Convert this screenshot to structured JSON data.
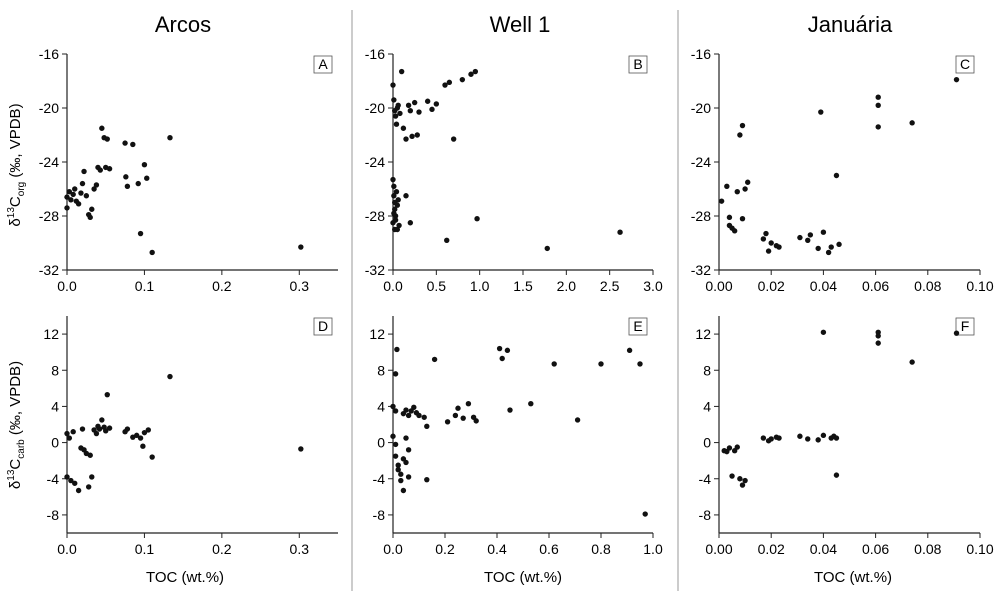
{
  "columns": [
    {
      "title": "Arcos"
    },
    {
      "title": "Well 1"
    },
    {
      "title": "Januária"
    }
  ],
  "ylabels": {
    "org": {
      "prefix": "δ",
      "sup": "13",
      "main": "C",
      "sub": "org",
      "suffix": " (‰, VPDB)"
    },
    "carb": {
      "prefix": "δ",
      "sup": "13",
      "main": "C",
      "sub": "carb",
      "suffix": " (‰, VPDB)"
    }
  },
  "xlabel": "TOC (wt.%)",
  "colors": {
    "points": "#111111",
    "axis": "#222222",
    "separator": "#999999"
  },
  "chart_data": [
    {
      "panel": "A",
      "type": "scatter",
      "column": "Arcos",
      "variable": "δ13Corg",
      "xlim": [
        0,
        0.35
      ],
      "ylim": [
        -32,
        -16
      ],
      "xticks": [
        "0.0",
        "0.1",
        "0.2",
        "0.3"
      ],
      "yticks": [
        "-16",
        "-20",
        "-24",
        "-28",
        "-32"
      ],
      "points": [
        [
          0.0,
          -27.4
        ],
        [
          0.0,
          -26.6
        ],
        [
          0.003,
          -26.2
        ],
        [
          0.005,
          -26.8
        ],
        [
          0.008,
          -26.4
        ],
        [
          0.01,
          -26.0
        ],
        [
          0.012,
          -26.9
        ],
        [
          0.015,
          -27.1
        ],
        [
          0.018,
          -26.3
        ],
        [
          0.02,
          -25.6
        ],
        [
          0.022,
          -24.7
        ],
        [
          0.025,
          -26.5
        ],
        [
          0.028,
          -27.9
        ],
        [
          0.03,
          -28.1
        ],
        [
          0.032,
          -27.5
        ],
        [
          0.035,
          -26.0
        ],
        [
          0.038,
          -25.7
        ],
        [
          0.04,
          -24.4
        ],
        [
          0.043,
          -24.6
        ],
        [
          0.045,
          -21.5
        ],
        [
          0.048,
          -22.2
        ],
        [
          0.05,
          -24.4
        ],
        [
          0.052,
          -22.3
        ],
        [
          0.055,
          -24.5
        ],
        [
          0.075,
          -22.6
        ],
        [
          0.076,
          -25.1
        ],
        [
          0.078,
          -25.8
        ],
        [
          0.085,
          -22.7
        ],
        [
          0.092,
          -25.6
        ],
        [
          0.095,
          -29.3
        ],
        [
          0.1,
          -24.2
        ],
        [
          0.103,
          -25.2
        ],
        [
          0.11,
          -30.7
        ],
        [
          0.133,
          -22.2
        ],
        [
          0.302,
          -30.3
        ]
      ]
    },
    {
      "panel": "B",
      "type": "scatter",
      "column": "Well 1",
      "variable": "δ13Corg",
      "xlim": [
        0,
        3.0
      ],
      "ylim": [
        -32,
        -16
      ],
      "xticks": [
        "0.0",
        "0.5",
        "1.0",
        "1.5",
        "2.0",
        "2.5",
        "3.0"
      ],
      "yticks": [
        "-16",
        "-20",
        "-24",
        "-28",
        "-32"
      ],
      "points": [
        [
          0.0,
          -18.3
        ],
        [
          0.01,
          -19.4
        ],
        [
          0.02,
          -20.2
        ],
        [
          0.03,
          -20.6
        ],
        [
          0.04,
          -21.2
        ],
        [
          0.05,
          -20.0
        ],
        [
          0.06,
          -19.8
        ],
        [
          0.08,
          -20.4
        ],
        [
          0.1,
          -17.3
        ],
        [
          0.12,
          -21.5
        ],
        [
          0.15,
          -22.3
        ],
        [
          0.18,
          -19.8
        ],
        [
          0.2,
          -20.2
        ],
        [
          0.22,
          -22.1
        ],
        [
          0.25,
          -19.6
        ],
        [
          0.28,
          -22.0
        ],
        [
          0.3,
          -20.3
        ],
        [
          0.4,
          -19.5
        ],
        [
          0.45,
          -20.1
        ],
        [
          0.5,
          -19.7
        ],
        [
          0.6,
          -18.3
        ],
        [
          0.65,
          -18.1
        ],
        [
          0.7,
          -22.3
        ],
        [
          0.8,
          -17.9
        ],
        [
          0.9,
          -17.5
        ],
        [
          0.95,
          -17.3
        ],
        [
          0.0,
          -25.3
        ],
        [
          0.01,
          -25.8
        ],
        [
          0.01,
          -26.5
        ],
        [
          0.02,
          -27.0
        ],
        [
          0.02,
          -27.5
        ],
        [
          0.03,
          -28.0
        ],
        [
          0.03,
          -28.3
        ],
        [
          0.04,
          -26.2
        ],
        [
          0.05,
          -27.2
        ],
        [
          0.06,
          -26.8
        ],
        [
          0.07,
          -28.7
        ],
        [
          0.0,
          -28.5
        ],
        [
          0.01,
          -27.8
        ],
        [
          0.02,
          -29.0
        ],
        [
          0.05,
          -29.0
        ],
        [
          0.15,
          -26.5
        ],
        [
          0.2,
          -28.5
        ],
        [
          0.62,
          -29.8
        ],
        [
          0.97,
          -28.2
        ],
        [
          1.78,
          -30.4
        ],
        [
          2.62,
          -29.2
        ]
      ]
    },
    {
      "panel": "C",
      "type": "scatter",
      "column": "Januária",
      "variable": "δ13Corg",
      "xlim": [
        0,
        0.1
      ],
      "ylim": [
        -32,
        -16
      ],
      "xticks": [
        "0.00",
        "0.02",
        "0.04",
        "0.06",
        "0.08",
        "0.10"
      ],
      "yticks": [
        "-16",
        "-20",
        "-24",
        "-28",
        "-32"
      ],
      "points": [
        [
          0.001,
          -26.9
        ],
        [
          0.003,
          -25.8
        ],
        [
          0.004,
          -28.1
        ],
        [
          0.004,
          -28.7
        ],
        [
          0.005,
          -28.9
        ],
        [
          0.006,
          -29.1
        ],
        [
          0.007,
          -26.2
        ],
        [
          0.008,
          -22.0
        ],
        [
          0.009,
          -21.3
        ],
        [
          0.009,
          -28.2
        ],
        [
          0.01,
          -26.0
        ],
        [
          0.011,
          -25.5
        ],
        [
          0.017,
          -29.7
        ],
        [
          0.018,
          -29.3
        ],
        [
          0.019,
          -30.6
        ],
        [
          0.02,
          -30.0
        ],
        [
          0.022,
          -30.2
        ],
        [
          0.023,
          -30.3
        ],
        [
          0.031,
          -29.6
        ],
        [
          0.034,
          -29.8
        ],
        [
          0.035,
          -29.4
        ],
        [
          0.038,
          -30.4
        ],
        [
          0.039,
          -20.3
        ],
        [
          0.04,
          -29.2
        ],
        [
          0.042,
          -30.7
        ],
        [
          0.043,
          -30.3
        ],
        [
          0.045,
          -25.0
        ],
        [
          0.046,
          -30.1
        ],
        [
          0.061,
          -19.2
        ],
        [
          0.061,
          -19.8
        ],
        [
          0.061,
          -21.4
        ],
        [
          0.074,
          -21.1
        ],
        [
          0.091,
          -17.9
        ]
      ]
    },
    {
      "panel": "D",
      "type": "scatter",
      "column": "Arcos",
      "variable": "δ13Ccarb",
      "xlim": [
        0,
        0.35
      ],
      "ylim": [
        -10,
        14
      ],
      "xticks": [
        "0.0",
        "0.1",
        "0.2",
        "0.3"
      ],
      "yticks": [
        "12",
        "8",
        "4",
        "0",
        "-4",
        "-8"
      ],
      "points": [
        [
          0.0,
          1.0
        ],
        [
          0.0,
          -3.8
        ],
        [
          0.003,
          0.5
        ],
        [
          0.005,
          -4.2
        ],
        [
          0.008,
          1.2
        ],
        [
          0.01,
          -4.5
        ],
        [
          0.015,
          -5.3
        ],
        [
          0.018,
          -0.6
        ],
        [
          0.02,
          1.5
        ],
        [
          0.022,
          -0.8
        ],
        [
          0.025,
          -1.2
        ],
        [
          0.028,
          -4.9
        ],
        [
          0.03,
          -1.4
        ],
        [
          0.032,
          -3.8
        ],
        [
          0.035,
          1.4
        ],
        [
          0.038,
          1.0
        ],
        [
          0.04,
          1.8
        ],
        [
          0.042,
          1.5
        ],
        [
          0.045,
          2.5
        ],
        [
          0.048,
          1.7
        ],
        [
          0.05,
          1.3
        ],
        [
          0.052,
          5.3
        ],
        [
          0.055,
          1.6
        ],
        [
          0.075,
          1.2
        ],
        [
          0.078,
          1.5
        ],
        [
          0.085,
          0.6
        ],
        [
          0.09,
          0.8
        ],
        [
          0.095,
          0.5
        ],
        [
          0.098,
          -0.4
        ],
        [
          0.1,
          1.1
        ],
        [
          0.105,
          1.4
        ],
        [
          0.11,
          -1.6
        ],
        [
          0.133,
          7.3
        ],
        [
          0.302,
          -0.7
        ]
      ]
    },
    {
      "panel": "E",
      "type": "scatter",
      "column": "Well 1",
      "variable": "δ13Ccarb",
      "xlim": [
        0,
        1.0
      ],
      "ylim": [
        -10,
        14
      ],
      "xticks": [
        "0.0",
        "0.2",
        "0.4",
        "0.6",
        "0.8",
        "1.0"
      ],
      "yticks": [
        "12",
        "8",
        "4",
        "0",
        "-4",
        "-8"
      ],
      "points": [
        [
          0.0,
          4.0
        ],
        [
          0.01,
          3.5
        ],
        [
          0.0,
          0.7
        ],
        [
          0.01,
          -0.2
        ],
        [
          0.01,
          -1.5
        ],
        [
          0.02,
          -2.5
        ],
        [
          0.02,
          -3.0
        ],
        [
          0.03,
          -3.5
        ],
        [
          0.03,
          -4.2
        ],
        [
          0.04,
          -1.8
        ],
        [
          0.04,
          -5.3
        ],
        [
          0.05,
          -2.2
        ],
        [
          0.05,
          0.5
        ],
        [
          0.06,
          -0.8
        ],
        [
          0.06,
          -3.8
        ],
        [
          0.04,
          3.2
        ],
        [
          0.05,
          3.6
        ],
        [
          0.06,
          3.0
        ],
        [
          0.07,
          3.5
        ],
        [
          0.08,
          3.9
        ],
        [
          0.09,
          3.3
        ],
        [
          0.1,
          3.0
        ],
        [
          0.12,
          2.8
        ],
        [
          0.13,
          1.8
        ],
        [
          0.015,
          10.3
        ],
        [
          0.01,
          7.6
        ],
        [
          0.13,
          -4.1
        ],
        [
          0.16,
          9.2
        ],
        [
          0.21,
          2.3
        ],
        [
          0.24,
          3.0
        ],
        [
          0.25,
          3.8
        ],
        [
          0.27,
          2.7
        ],
        [
          0.29,
          4.3
        ],
        [
          0.31,
          2.8
        ],
        [
          0.32,
          2.4
        ],
        [
          0.41,
          10.4
        ],
        [
          0.42,
          9.3
        ],
        [
          0.44,
          10.2
        ],
        [
          0.45,
          3.6
        ],
        [
          0.53,
          4.3
        ],
        [
          0.62,
          8.7
        ],
        [
          0.71,
          2.5
        ],
        [
          0.8,
          8.7
        ],
        [
          0.91,
          10.2
        ],
        [
          0.95,
          8.7
        ],
        [
          0.97,
          -7.9
        ]
      ]
    },
    {
      "panel": "F",
      "type": "scatter",
      "column": "Januária",
      "variable": "δ13Ccarb",
      "xlim": [
        0,
        0.1
      ],
      "ylim": [
        -10,
        14
      ],
      "xticks": [
        "0.00",
        "0.02",
        "0.04",
        "0.06",
        "0.08",
        "0.10"
      ],
      "yticks": [
        "12",
        "8",
        "4",
        "0",
        "-4",
        "-8"
      ],
      "points": [
        [
          0.002,
          -0.9
        ],
        [
          0.003,
          -1.0
        ],
        [
          0.004,
          -0.6
        ],
        [
          0.005,
          -3.7
        ],
        [
          0.006,
          -0.9
        ],
        [
          0.007,
          -0.5
        ],
        [
          0.008,
          -4.0
        ],
        [
          0.009,
          -4.7
        ],
        [
          0.01,
          -4.2
        ],
        [
          0.017,
          0.5
        ],
        [
          0.019,
          0.2
        ],
        [
          0.02,
          0.4
        ],
        [
          0.022,
          0.6
        ],
        [
          0.023,
          0.5
        ],
        [
          0.031,
          0.7
        ],
        [
          0.034,
          0.4
        ],
        [
          0.038,
          0.3
        ],
        [
          0.04,
          12.2
        ],
        [
          0.04,
          0.8
        ],
        [
          0.043,
          0.5
        ],
        [
          0.044,
          0.7
        ],
        [
          0.045,
          0.5
        ],
        [
          0.045,
          -3.6
        ],
        [
          0.061,
          12.2
        ],
        [
          0.061,
          11.8
        ],
        [
          0.061,
          11.0
        ],
        [
          0.074,
          8.9
        ],
        [
          0.091,
          12.1
        ]
      ]
    }
  ]
}
